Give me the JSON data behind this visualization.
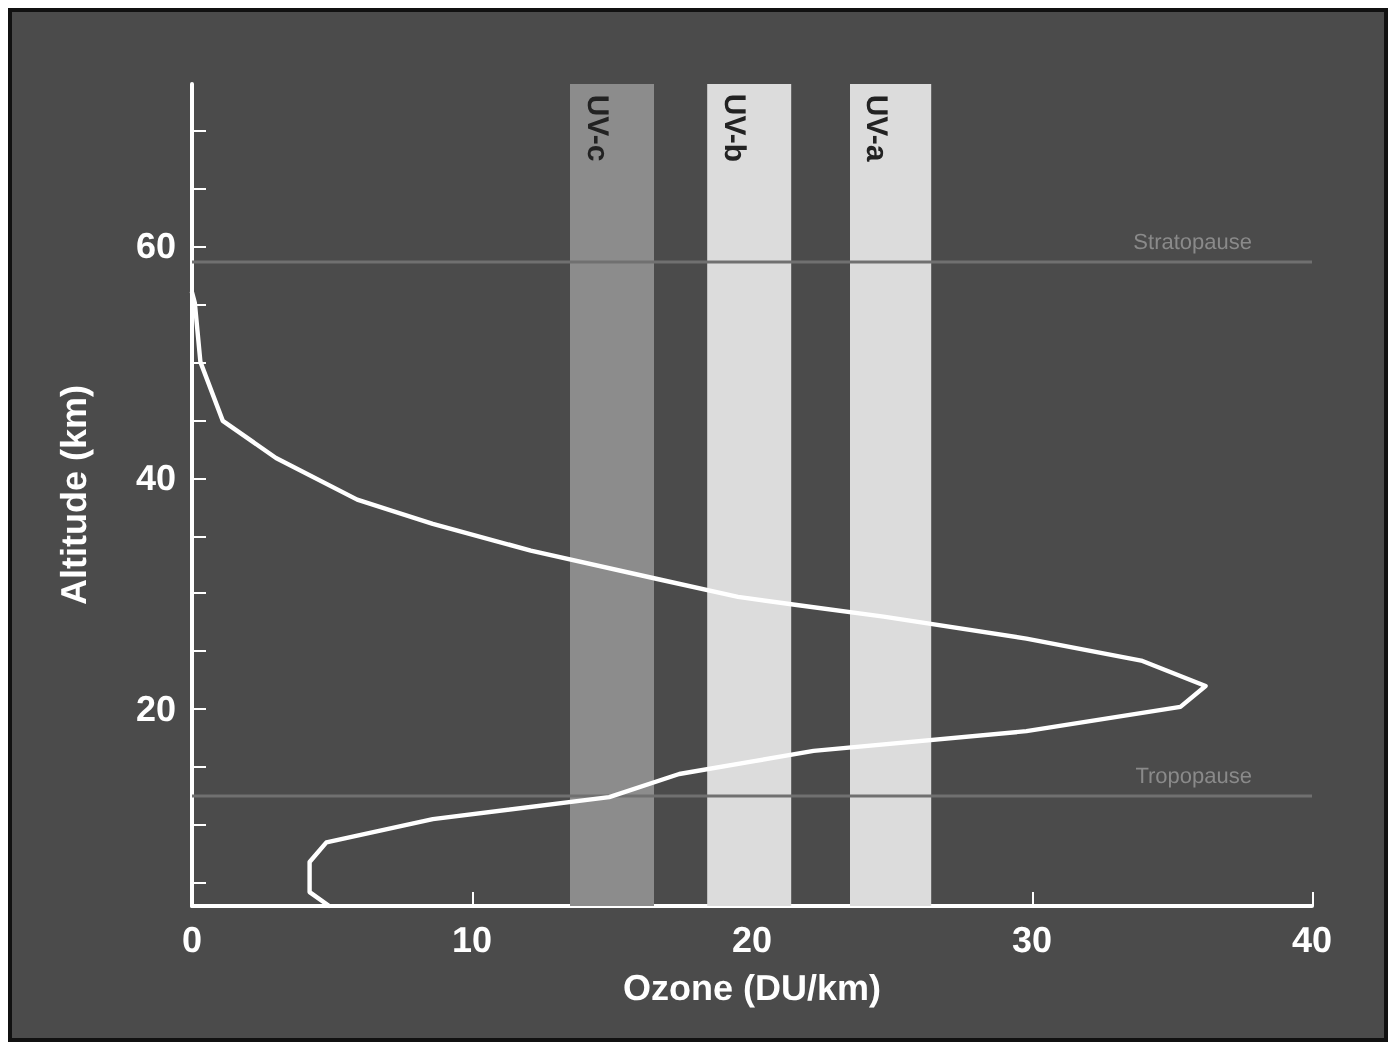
{
  "chart_data": {
    "type": "line",
    "xlabel": "Ozone (DU/km)",
    "ylabel": "Altitude (km)",
    "xlim": [
      0,
      40
    ],
    "xticks": [
      0,
      10,
      20,
      30,
      40
    ],
    "ylim": [
      3,
      74
    ],
    "yticks": [
      {
        "value": 5,
        "label": null
      },
      {
        "value": 10,
        "label": null
      },
      {
        "value": 15,
        "label": null
      },
      20,
      {
        "value": 25,
        "label": null
      },
      {
        "value": 30,
        "label": null
      },
      {
        "value": 35,
        "label": null
      },
      40,
      {
        "value": 45,
        "label": null
      },
      {
        "value": 50,
        "label": null
      },
      {
        "value": 55,
        "label": null
      },
      60,
      {
        "value": 65,
        "label": null
      },
      {
        "value": 70,
        "label": null
      }
    ],
    "grid": false,
    "marker": "none",
    "line_style": "solid",
    "series": [
      {
        "color": "#ffffff",
        "x": [
          0,
          0.1,
          0.3,
          1.1,
          3.0,
          5.9,
          8.6,
          12.1,
          16.7,
          19.5,
          21.6,
          24.7,
          29.8,
          33.9,
          36.2,
          35.3,
          29.8,
          22.2,
          17.4,
          14.9,
          8.6,
          4.8,
          4.2,
          4.2,
          4.9
        ],
        "values": [
          56,
          55.1,
          50,
          44.9,
          41.7,
          38.1,
          36,
          33.7,
          31.2,
          29.7,
          29,
          28,
          26.1,
          24.2,
          22,
          20.2,
          18.1,
          16.4,
          14.4,
          12.4,
          10.5,
          8.5,
          6.8,
          4.2,
          3
        ]
      }
    ],
    "ref_lines": [
      {
        "axis": "y",
        "value": 58.6,
        "label": "Stratopause",
        "color": "#707070"
      },
      {
        "axis": "y",
        "value": 12.5,
        "label": "Tropopause",
        "color": "#707070"
      }
    ],
    "bands": [
      {
        "axis": "x",
        "from": 13.5,
        "to": 16.5,
        "label": "UV-c",
        "color": "#8c8c8c"
      },
      {
        "axis": "x",
        "from": 18.4,
        "to": 21.4,
        "label": "UV-b",
        "color": "#dcdcdc"
      },
      {
        "axis": "x",
        "from": 23.5,
        "to": 26.4,
        "label": "UV-a",
        "color": "#dcdcdc"
      }
    ]
  }
}
